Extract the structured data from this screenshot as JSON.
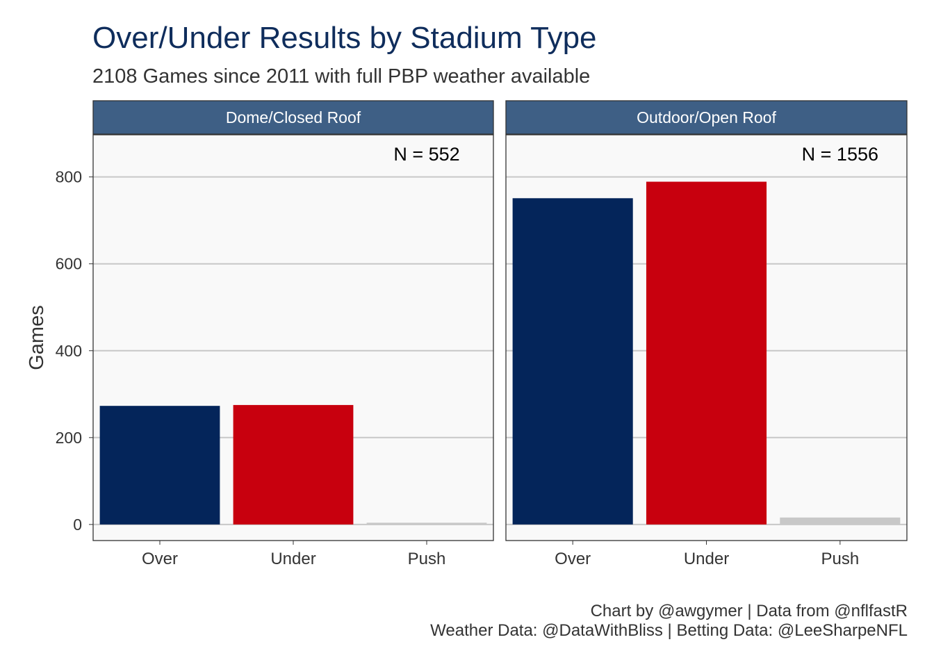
{
  "title": "Over/Under Results by Stadium Type",
  "subtitle": "2108 Games since 2011 with full PBP weather available",
  "caption": {
    "line1": "Chart by @awgymer | Data from @nflfastR",
    "line2": "Weather Data: @DataWithBliss | Betting Data: @LeeSharpeNFL"
  },
  "colors": {
    "Over": "#04255a",
    "Under": "#c8000e",
    "Push": "#c8c8c8",
    "strip": "#3e5f85",
    "panel_bg": "#f9f9f9",
    "grid": "#c8c8c8"
  },
  "chart_data": {
    "type": "bar",
    "ylabel": "Games",
    "ylim": [
      -37,
      897
    ],
    "yticks": [
      0,
      200,
      400,
      600,
      800
    ],
    "categories": [
      "Over",
      "Under",
      "Push"
    ],
    "facets": [
      {
        "name": "Dome/Closed Roof",
        "annotation": "N = 552",
        "values": [
          273,
          275,
          4
        ]
      },
      {
        "name": "Outdoor/Open Roof",
        "annotation": "N = 1556",
        "values": [
          751,
          789,
          16
        ]
      }
    ]
  }
}
